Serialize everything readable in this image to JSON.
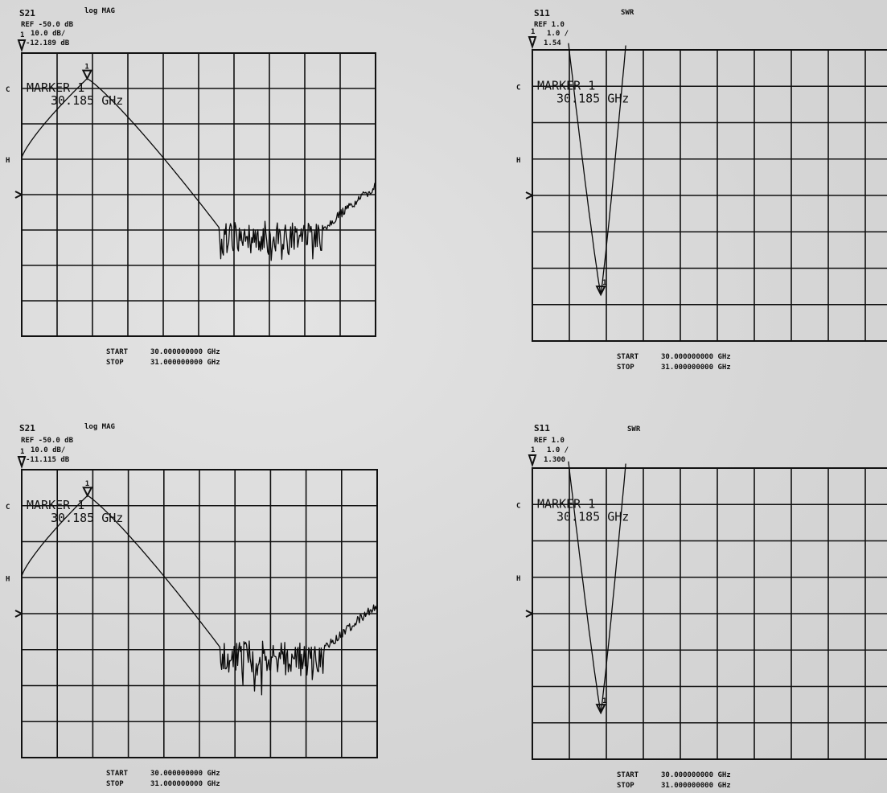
{
  "chart_data": [
    {
      "type": "line",
      "param": "S21",
      "format": "log MAG",
      "ref": "REF -50.0 dB",
      "scale": "10.0 dB/",
      "marker_value": "-12.189 dB",
      "side_label_c": "C",
      "side_label_h": "H",
      "marker_text": "MARKER 1",
      "marker_freq": "30.185 GHz",
      "start_label": "START",
      "start_value": "30.000000000 GHz",
      "stop_label": "STOP",
      "stop_value": "31.000000000 GHz",
      "xlim": [
        30.0,
        31.0
      ],
      "grid": true
    },
    {
      "type": "line",
      "param": "S11",
      "format": "SWR",
      "ref": "REF 1.0",
      "scale": "1.0 /",
      "marker_value": "1.54",
      "side_label_c": "C",
      "side_label_h": "H",
      "marker_text": "MARKER 1",
      "marker_freq": "30.185 GHz",
      "start_label": "START",
      "start_value": "30.000000000 GHz",
      "stop_label": "STOP",
      "stop_value": "31.000000000 GHz",
      "xlim": [
        30.0,
        31.0
      ],
      "grid": true
    },
    {
      "type": "line",
      "param": "S21",
      "format": "log MAG",
      "ref": "REF -50.0 dB",
      "scale": "10.0 dB/",
      "marker_value": "-11.115 dB",
      "side_label_c": "C",
      "side_label_h": "H",
      "marker_text": "MARKER 1",
      "marker_freq": "30.185 GHz",
      "start_label": "START",
      "start_value": "30.000000000 GHz",
      "stop_label": "STOP",
      "stop_value": "31.000000000 GHz",
      "xlim": [
        30.0,
        31.0
      ],
      "grid": true
    },
    {
      "type": "line",
      "param": "S11",
      "format": "SWR",
      "ref": "REF 1.0",
      "scale": "1.0 /",
      "marker_value": "1.300",
      "side_label_c": "C",
      "side_label_h": "H",
      "marker_text": "MARKER 1",
      "marker_freq": "30.185 GHz",
      "start_label": "START",
      "start_value": "30.000000000 GHz",
      "stop_label": "STOP",
      "stop_value": "31.000000000 GHz",
      "xlim": [
        30.0,
        31.0
      ],
      "grid": true
    }
  ]
}
